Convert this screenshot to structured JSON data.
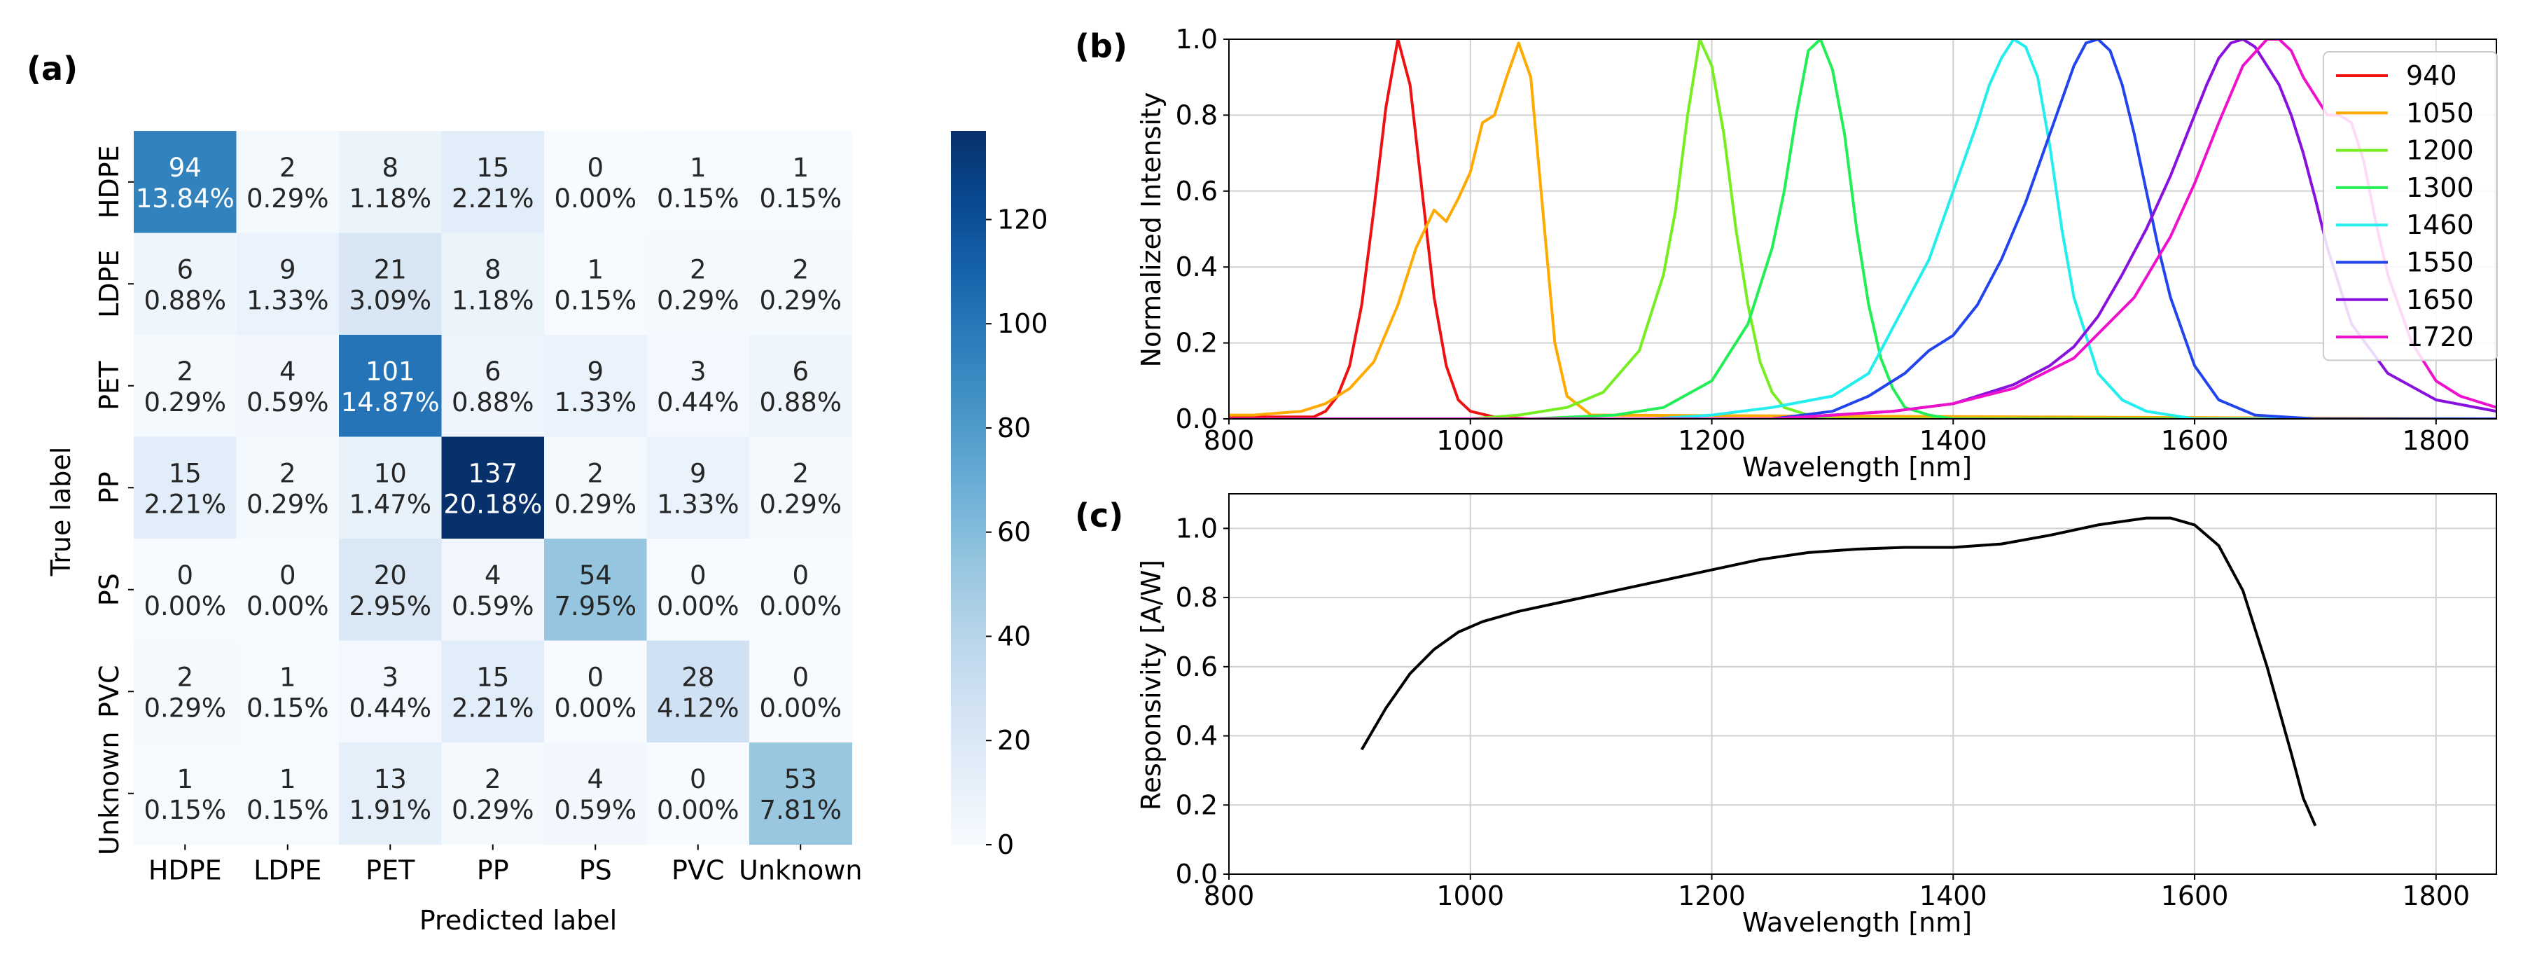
{
  "chart_data": [
    {
      "panel": "(a)",
      "type": "heatmap",
      "title": "",
      "xlabel": "Predicted label",
      "ylabel": "True label",
      "x_categories": [
        "HDPE",
        "LDPE",
        "PET",
        "PP",
        "PS",
        "PVC",
        "Unknown"
      ],
      "y_categories": [
        "HDPE",
        "LDPE",
        "PET",
        "PP",
        "PS",
        "PVC",
        "Unknown"
      ],
      "counts": [
        [
          94,
          2,
          8,
          15,
          0,
          1,
          1
        ],
        [
          6,
          9,
          21,
          8,
          1,
          2,
          2
        ],
        [
          2,
          4,
          101,
          6,
          9,
          3,
          6
        ],
        [
          15,
          2,
          10,
          137,
          2,
          9,
          2
        ],
        [
          0,
          0,
          20,
          4,
          54,
          0,
          0
        ],
        [
          2,
          1,
          3,
          15,
          0,
          28,
          0
        ],
        [
          1,
          1,
          13,
          2,
          4,
          0,
          53
        ]
      ],
      "percents": [
        [
          "13.84%",
          "0.29%",
          "1.18%",
          "2.21%",
          "0.00%",
          "0.15%",
          "0.15%"
        ],
        [
          "0.88%",
          "1.33%",
          "3.09%",
          "1.18%",
          "0.15%",
          "0.29%",
          "0.29%"
        ],
        [
          "0.29%",
          "0.59%",
          "14.87%",
          "0.88%",
          "1.33%",
          "0.44%",
          "0.88%"
        ],
        [
          "2.21%",
          "0.29%",
          "1.47%",
          "20.18%",
          "0.29%",
          "1.33%",
          "0.29%"
        ],
        [
          "0.00%",
          "0.00%",
          "2.95%",
          "0.59%",
          "7.95%",
          "0.00%",
          "0.00%"
        ],
        [
          "0.29%",
          "0.15%",
          "0.44%",
          "2.21%",
          "0.00%",
          "4.12%",
          "0.00%"
        ],
        [
          "0.15%",
          "0.15%",
          "1.91%",
          "0.29%",
          "0.59%",
          "0.00%",
          "7.81%"
        ]
      ],
      "colorbar": {
        "min": 0,
        "max": 137,
        "ticks": [
          0,
          20,
          40,
          60,
          80,
          100,
          120
        ]
      }
    },
    {
      "panel": "(b)",
      "type": "line",
      "xlabel": "Wavelength [nm]",
      "ylabel": "Normalized Intensity",
      "xlim": [
        800,
        1850
      ],
      "ylim": [
        0,
        1.0
      ],
      "xticks": [
        800,
        1000,
        1200,
        1400,
        1600,
        1800
      ],
      "yticks": [
        0.0,
        0.2,
        0.4,
        0.6,
        0.8,
        1.0
      ],
      "grid": true,
      "legend_position": "top-right",
      "series": [
        {
          "name": "940",
          "color": "#ee1111",
          "x": [
            800,
            870,
            880,
            890,
            900,
            910,
            920,
            930,
            940,
            950,
            960,
            970,
            980,
            990,
            1000,
            1020,
            1050,
            1100,
            1850
          ],
          "y": [
            0.005,
            0.005,
            0.02,
            0.06,
            0.14,
            0.3,
            0.55,
            0.82,
            1.0,
            0.88,
            0.6,
            0.32,
            0.14,
            0.05,
            0.02,
            0.005,
            0.0,
            0.0,
            0.0
          ]
        },
        {
          "name": "1050",
          "color": "#ffaa00",
          "x": [
            800,
            820,
            840,
            860,
            880,
            900,
            920,
            940,
            955,
            970,
            980,
            990,
            1000,
            1010,
            1020,
            1030,
            1040,
            1050,
            1060,
            1070,
            1080,
            1100,
            1850
          ],
          "y": [
            0.01,
            0.01,
            0.015,
            0.02,
            0.04,
            0.08,
            0.15,
            0.3,
            0.45,
            0.55,
            0.52,
            0.58,
            0.65,
            0.78,
            0.8,
            0.9,
            0.99,
            0.9,
            0.55,
            0.2,
            0.06,
            0.01,
            0.0
          ]
        },
        {
          "name": "1200",
          "color": "#77ee22",
          "x": [
            800,
            1000,
            1040,
            1080,
            1110,
            1140,
            1160,
            1170,
            1180,
            1190,
            1200,
            1210,
            1220,
            1230,
            1240,
            1250,
            1260,
            1280,
            1300,
            1850
          ],
          "y": [
            0.0,
            0.0,
            0.01,
            0.03,
            0.07,
            0.18,
            0.38,
            0.55,
            0.8,
            1.0,
            0.93,
            0.75,
            0.5,
            0.3,
            0.15,
            0.07,
            0.03,
            0.01,
            0.0,
            0.0
          ]
        },
        {
          "name": "1300",
          "color": "#22ee55",
          "x": [
            800,
            1050,
            1120,
            1160,
            1200,
            1230,
            1250,
            1260,
            1270,
            1280,
            1290,
            1300,
            1310,
            1320,
            1330,
            1340,
            1350,
            1360,
            1380,
            1400,
            1850
          ],
          "y": [
            0.0,
            0.0,
            0.01,
            0.03,
            0.1,
            0.25,
            0.45,
            0.6,
            0.8,
            0.97,
            1.0,
            0.92,
            0.75,
            0.5,
            0.3,
            0.16,
            0.08,
            0.03,
            0.01,
            0.0,
            0.0
          ]
        },
        {
          "name": "1460",
          "color": "#22eeee",
          "x": [
            800,
            1150,
            1200,
            1250,
            1300,
            1330,
            1360,
            1380,
            1400,
            1420,
            1430,
            1440,
            1450,
            1460,
            1470,
            1480,
            1490,
            1500,
            1520,
            1540,
            1560,
            1600,
            1850
          ],
          "y": [
            0.0,
            0.0,
            0.01,
            0.03,
            0.06,
            0.12,
            0.3,
            0.42,
            0.6,
            0.78,
            0.88,
            0.95,
            1.0,
            0.98,
            0.9,
            0.72,
            0.5,
            0.32,
            0.12,
            0.05,
            0.02,
            0.0,
            0.0
          ]
        },
        {
          "name": "1550",
          "color": "#2244ee",
          "x": [
            800,
            1250,
            1300,
            1330,
            1360,
            1380,
            1400,
            1420,
            1440,
            1460,
            1480,
            1500,
            1510,
            1520,
            1530,
            1540,
            1550,
            1560,
            1570,
            1580,
            1600,
            1620,
            1650,
            1700,
            1850
          ],
          "y": [
            0.0,
            0.0,
            0.02,
            0.06,
            0.12,
            0.18,
            0.22,
            0.3,
            0.42,
            0.57,
            0.75,
            0.93,
            0.99,
            1.0,
            0.97,
            0.88,
            0.75,
            0.6,
            0.45,
            0.32,
            0.14,
            0.05,
            0.01,
            0.0,
            0.0
          ]
        },
        {
          "name": "1650",
          "color": "#8811dd",
          "x": [
            800,
            1250,
            1300,
            1350,
            1400,
            1450,
            1480,
            1500,
            1520,
            1540,
            1560,
            1580,
            1600,
            1610,
            1620,
            1630,
            1640,
            1650,
            1660,
            1670,
            1680,
            1690,
            1700,
            1710,
            1730,
            1760,
            1800,
            1850
          ],
          "y": [
            0.0,
            0.0,
            0.01,
            0.02,
            0.04,
            0.09,
            0.14,
            0.19,
            0.27,
            0.38,
            0.5,
            0.64,
            0.8,
            0.88,
            0.95,
            0.99,
            1.0,
            0.98,
            0.93,
            0.88,
            0.8,
            0.7,
            0.58,
            0.45,
            0.25,
            0.12,
            0.05,
            0.02
          ]
        },
        {
          "name": "1720",
          "color": "#ee11cc",
          "x": [
            800,
            1250,
            1300,
            1350,
            1400,
            1450,
            1500,
            1550,
            1580,
            1600,
            1620,
            1640,
            1660,
            1670,
            1680,
            1690,
            1700,
            1710,
            1720,
            1730,
            1740,
            1750,
            1760,
            1780,
            1800,
            1820,
            1850
          ],
          "y": [
            0.0,
            0.0,
            0.01,
            0.02,
            0.04,
            0.08,
            0.16,
            0.32,
            0.48,
            0.62,
            0.78,
            0.93,
            1.0,
            1.0,
            0.97,
            0.9,
            0.85,
            0.8,
            0.8,
            0.78,
            0.68,
            0.52,
            0.38,
            0.2,
            0.1,
            0.06,
            0.03
          ]
        }
      ]
    },
    {
      "panel": "(c)",
      "type": "line",
      "xlabel": "Wavelength [nm]",
      "ylabel": "Responsivity [A/W]",
      "xlim": [
        800,
        1850
      ],
      "ylim": [
        0,
        1.1
      ],
      "xticks": [
        800,
        1000,
        1200,
        1400,
        1600,
        1800
      ],
      "yticks": [
        0.0,
        0.2,
        0.4,
        0.6,
        0.8,
        1.0
      ],
      "grid": true,
      "series": [
        {
          "name": "Responsivity",
          "color": "#000000",
          "x": [
            910,
            930,
            950,
            970,
            990,
            1010,
            1040,
            1080,
            1120,
            1160,
            1200,
            1240,
            1280,
            1320,
            1360,
            1400,
            1440,
            1480,
            1520,
            1560,
            1580,
            1600,
            1620,
            1640,
            1660,
            1680,
            1690,
            1700
          ],
          "y": [
            0.36,
            0.48,
            0.58,
            0.65,
            0.7,
            0.73,
            0.76,
            0.79,
            0.82,
            0.85,
            0.88,
            0.91,
            0.93,
            0.94,
            0.945,
            0.945,
            0.955,
            0.98,
            1.01,
            1.03,
            1.03,
            1.01,
            0.95,
            0.82,
            0.6,
            0.35,
            0.22,
            0.14
          ]
        }
      ]
    }
  ]
}
